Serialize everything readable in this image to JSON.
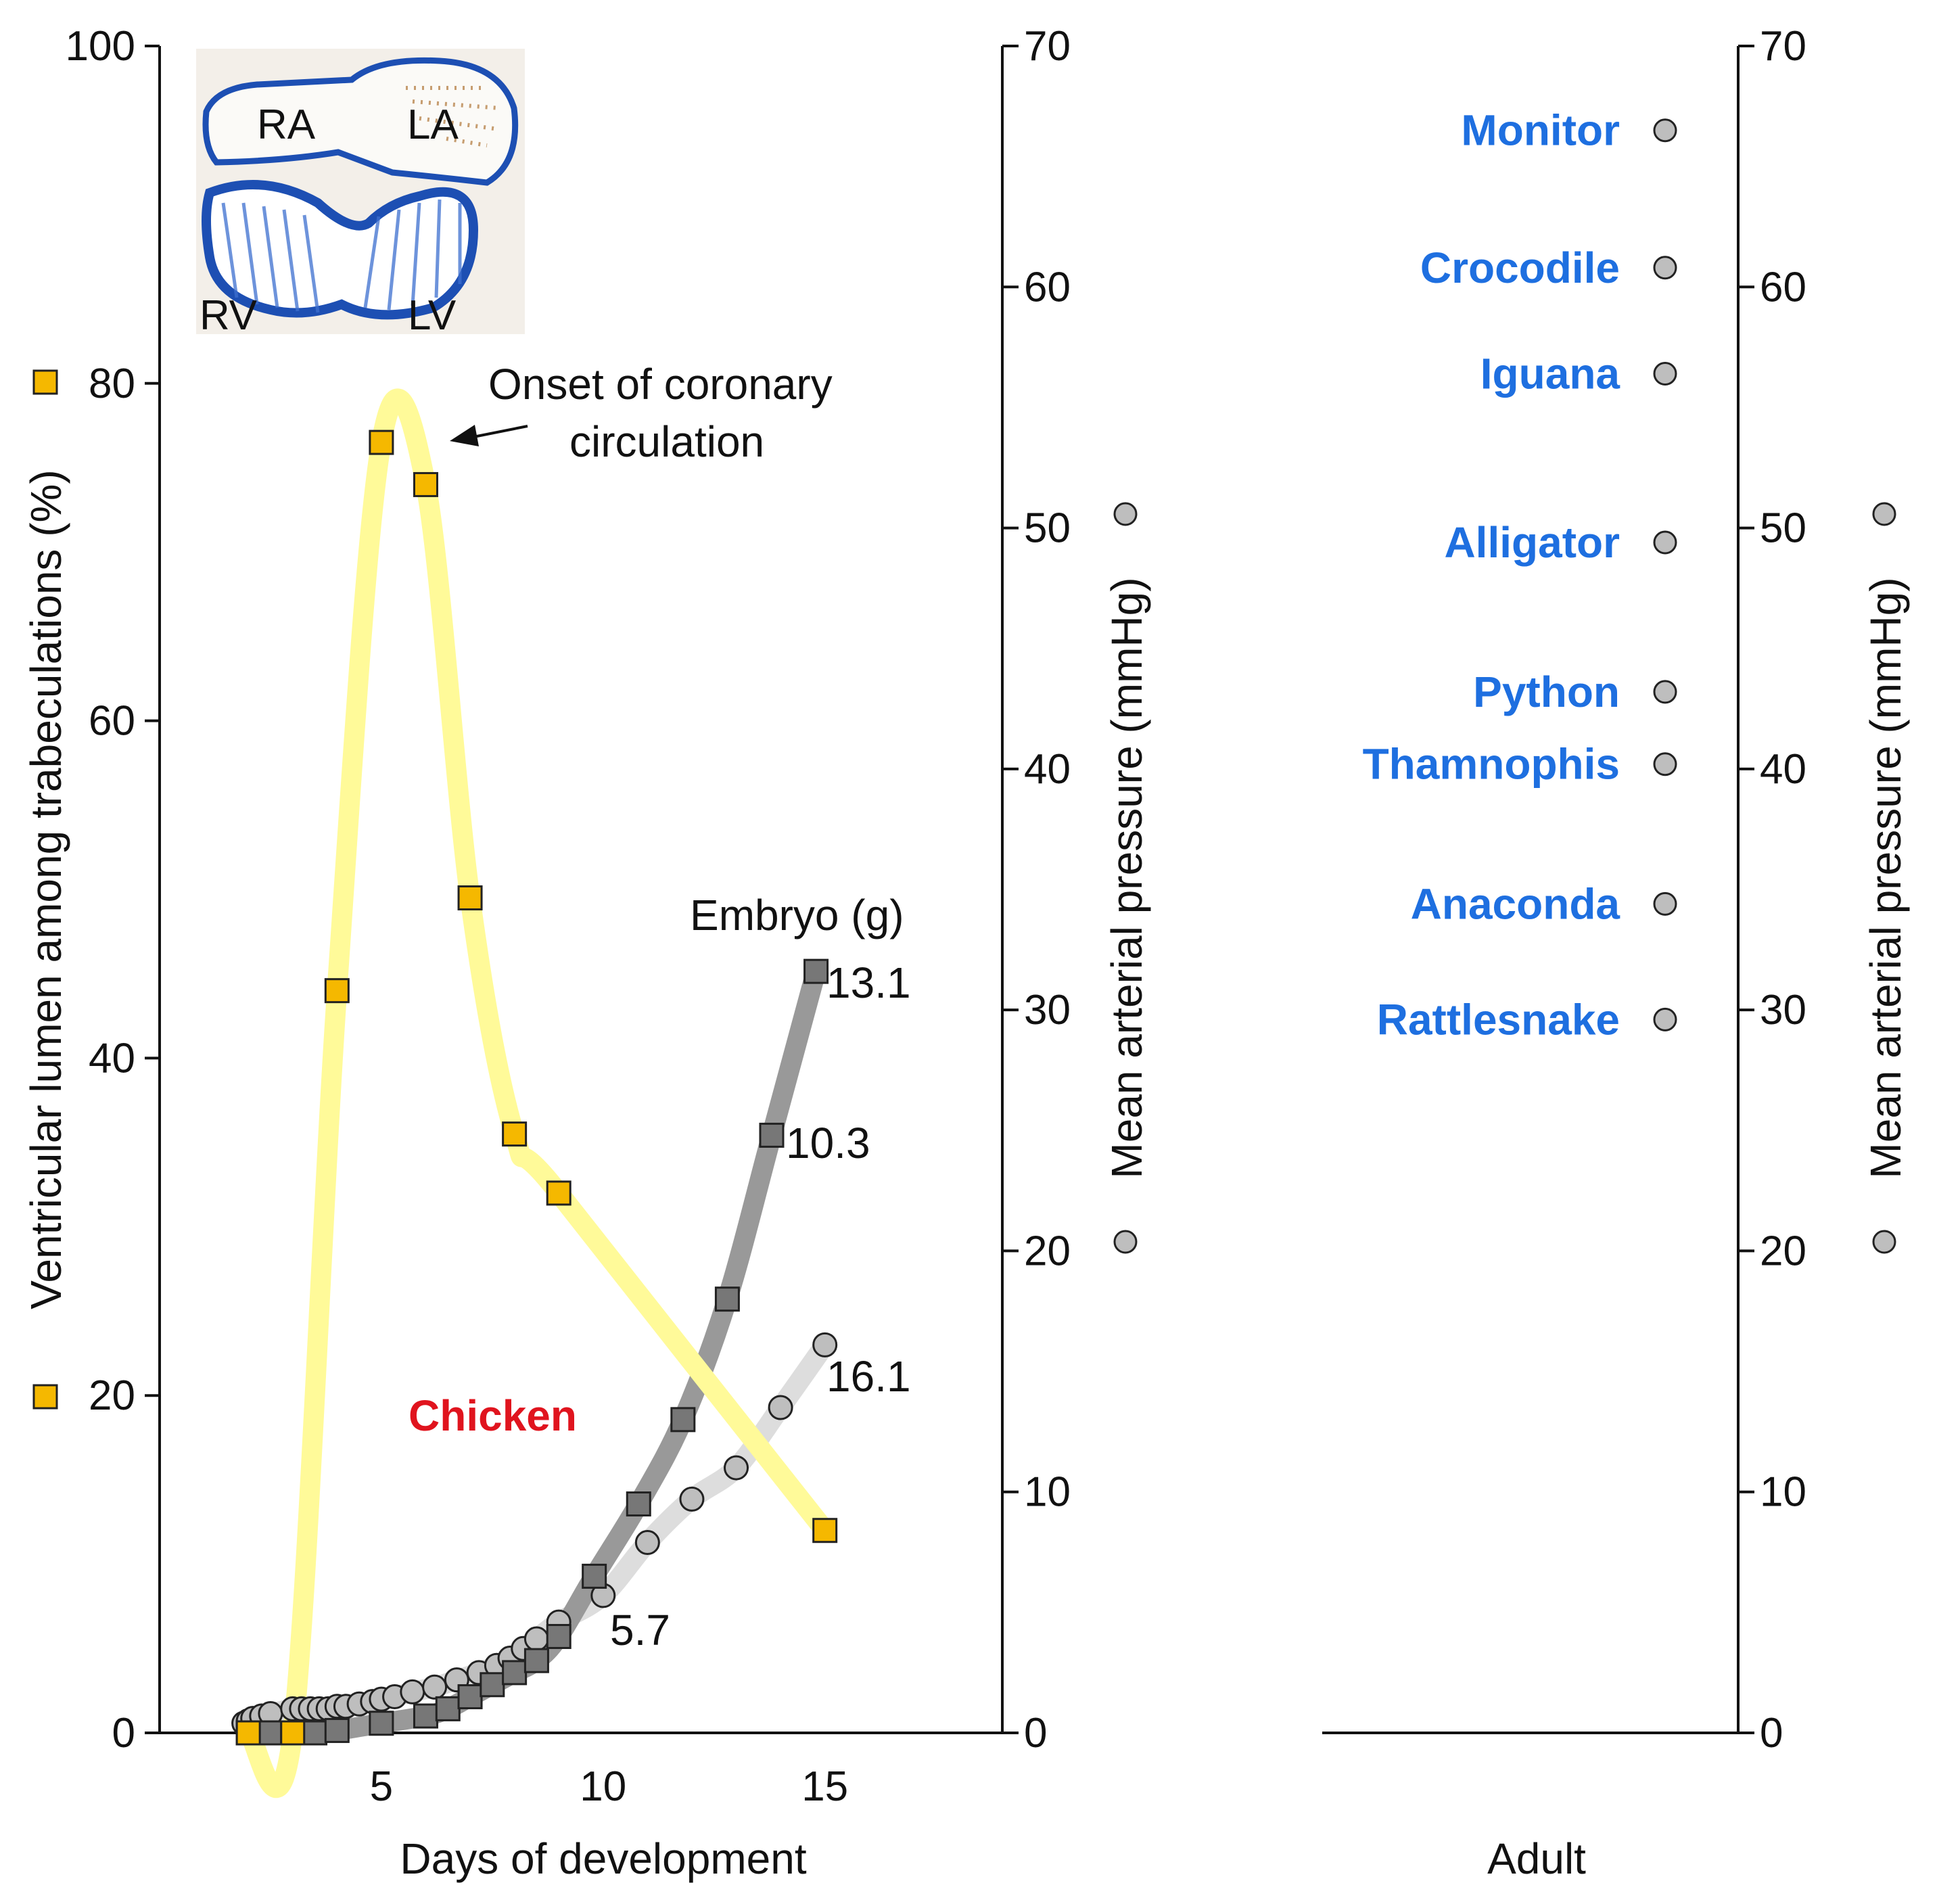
{
  "chart_data": [
    {
      "type": "line",
      "title": "Chicken",
      "xlabel": "Days of development",
      "ylabel_left": "Ventricular lumen among trabeculations (%)",
      "ylabel_right": "Mean arterial pressure (mmHg)",
      "xlim": [
        0,
        19
      ],
      "x_ticks": [
        "5",
        "10",
        "15"
      ],
      "ylim_left": [
        0,
        100
      ],
      "y_ticks_left": [
        "0",
        "20",
        "40",
        "60",
        "80",
        "100"
      ],
      "ylim_right": [
        0,
        70
      ],
      "y_ticks_right": [
        "0",
        "10",
        "20",
        "30",
        "40",
        "50",
        "60",
        "70"
      ],
      "series": [
        {
          "name": "Ventricular lumen among trabeculations (%)",
          "axis": "left",
          "marker": "square",
          "color": "#F5B800",
          "trend_color": "#FFFA99",
          "x": [
            2,
            3,
            4,
            5,
            6,
            7,
            8,
            9,
            15
          ],
          "values": [
            0,
            0,
            44,
            76.5,
            74,
            49.5,
            35.5,
            32,
            12
          ]
        },
        {
          "name": "Embryo (g)",
          "axis": "right",
          "marker": "square",
          "color": "#777777",
          "trend_color": "#999999",
          "x": [
            2,
            2.5,
            3,
            3.5,
            4,
            5,
            6,
            6.5,
            7,
            7.5,
            8,
            8.5,
            9,
            9.8,
            10.8,
            11.8,
            12.8,
            13.8,
            14.8
          ],
          "values": [
            0,
            0,
            0,
            0,
            0.1,
            0.4,
            0.7,
            1,
            1.5,
            2,
            2.5,
            3,
            4,
            6.5,
            9.5,
            13,
            18,
            24.8,
            31.6
          ]
        },
        {
          "name": "Mean arterial pressure (mmHg)",
          "axis": "right",
          "marker": "circle",
          "color": "#BEBEBE",
          "trend_color": "#DDDDDD",
          "x": [
            1.9,
            2,
            2.1,
            2.3,
            2.5,
            3,
            3.2,
            3.4,
            3.6,
            3.8,
            4,
            4.2,
            4.5,
            4.8,
            5,
            5.3,
            5.7,
            6.2,
            6.7,
            7.2,
            7.6,
            7.9,
            8.2,
            8.5,
            9,
            10,
            11,
            12,
            13,
            14,
            15
          ],
          "values": [
            0.4,
            0.5,
            0.6,
            0.7,
            0.8,
            1,
            1,
            1,
            1,
            1,
            1.1,
            1.1,
            1.2,
            1.3,
            1.4,
            1.5,
            1.7,
            1.9,
            2.2,
            2.5,
            2.8,
            3.1,
            3.5,
            3.9,
            4.6,
            5.7,
            7.9,
            9.7,
            11,
            13.5,
            16.1
          ]
        }
      ],
      "annotations": [
        {
          "text": "Onset of coronary",
          "points_to_x": 5.5
        },
        {
          "text": "circulation"
        },
        {
          "text": "Embryo (g)"
        },
        {
          "text": "13.1"
        },
        {
          "text": "10.3"
        },
        {
          "text": "16.1"
        },
        {
          "text": "5.7"
        }
      ],
      "inset_labels": [
        "RA",
        "LA",
        "RV",
        "LV"
      ]
    },
    {
      "type": "scatter",
      "xlabel": "Adult",
      "ylabel": "Mean arterial pressure (mmHg)",
      "ylim": [
        0,
        70
      ],
      "y_ticks": [
        "0",
        "10",
        "20",
        "30",
        "40",
        "50",
        "60",
        "70"
      ],
      "label_color": "#1E6FE0",
      "marker_color": "#BEBEBE",
      "points": [
        {
          "label": "Monitor",
          "value": 66.5
        },
        {
          "label": "Crocodile",
          "value": 60.8
        },
        {
          "label": "Iguana",
          "value": 56.4
        },
        {
          "label": "Alligator",
          "value": 49.4
        },
        {
          "label": "Python",
          "value": 43.2
        },
        {
          "label": "Thamnophis",
          "value": 40.2
        },
        {
          "label": "Anaconda",
          "value": 34.4
        },
        {
          "label": "Rattlesnake",
          "value": 29.6
        }
      ]
    }
  ]
}
